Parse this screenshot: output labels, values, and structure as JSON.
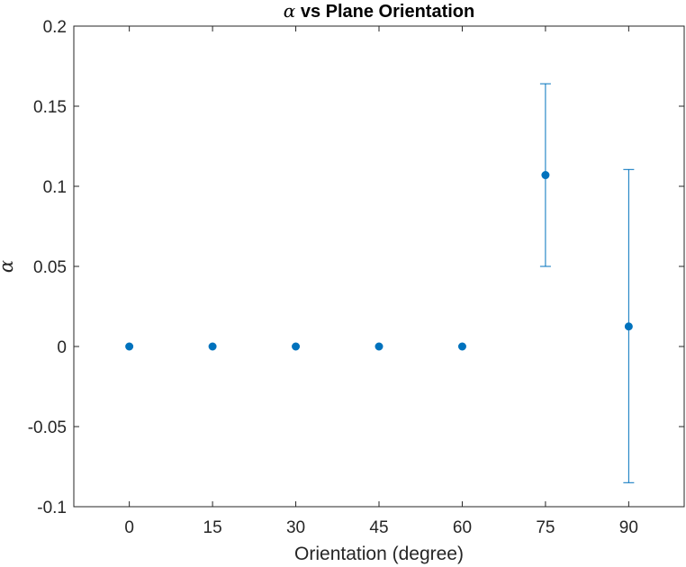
{
  "chart_data": {
    "type": "scatter",
    "title_symbol": "α",
    "title_rest": " vs Plane Orientation",
    "xlabel": "Orientation (degree)",
    "ylabel": "α",
    "xlim": [
      -10,
      100
    ],
    "ylim": [
      -0.1,
      0.2
    ],
    "xticks": [
      0,
      15,
      30,
      45,
      60,
      75,
      90
    ],
    "xtick_labels": [
      "0",
      "15",
      "30",
      "45",
      "60",
      "75",
      "90"
    ],
    "yticks": [
      -0.1,
      -0.05,
      0,
      0.05,
      0.1,
      0.15,
      0.2
    ],
    "ytick_labels": [
      "-0.1",
      "-0.05",
      "0",
      "0.05",
      "0.1",
      "0.15",
      "0.2"
    ],
    "grid": false,
    "box": true,
    "color": "#0072BD",
    "points": [
      {
        "x": 0,
        "y": 0,
        "err_low": 0,
        "err_high": 0
      },
      {
        "x": 15,
        "y": 0,
        "err_low": 0,
        "err_high": 0
      },
      {
        "x": 30,
        "y": 0,
        "err_low": 0,
        "err_high": 0
      },
      {
        "x": 45,
        "y": 0,
        "err_low": 0,
        "err_high": 0
      },
      {
        "x": 60,
        "y": 0,
        "err_low": 0,
        "err_high": 0
      },
      {
        "x": 75,
        "y": 0.107,
        "err_low": 0.05,
        "err_high": 0.164
      },
      {
        "x": 90,
        "y": 0.0125,
        "err_low": -0.085,
        "err_high": 0.1105
      }
    ]
  }
}
